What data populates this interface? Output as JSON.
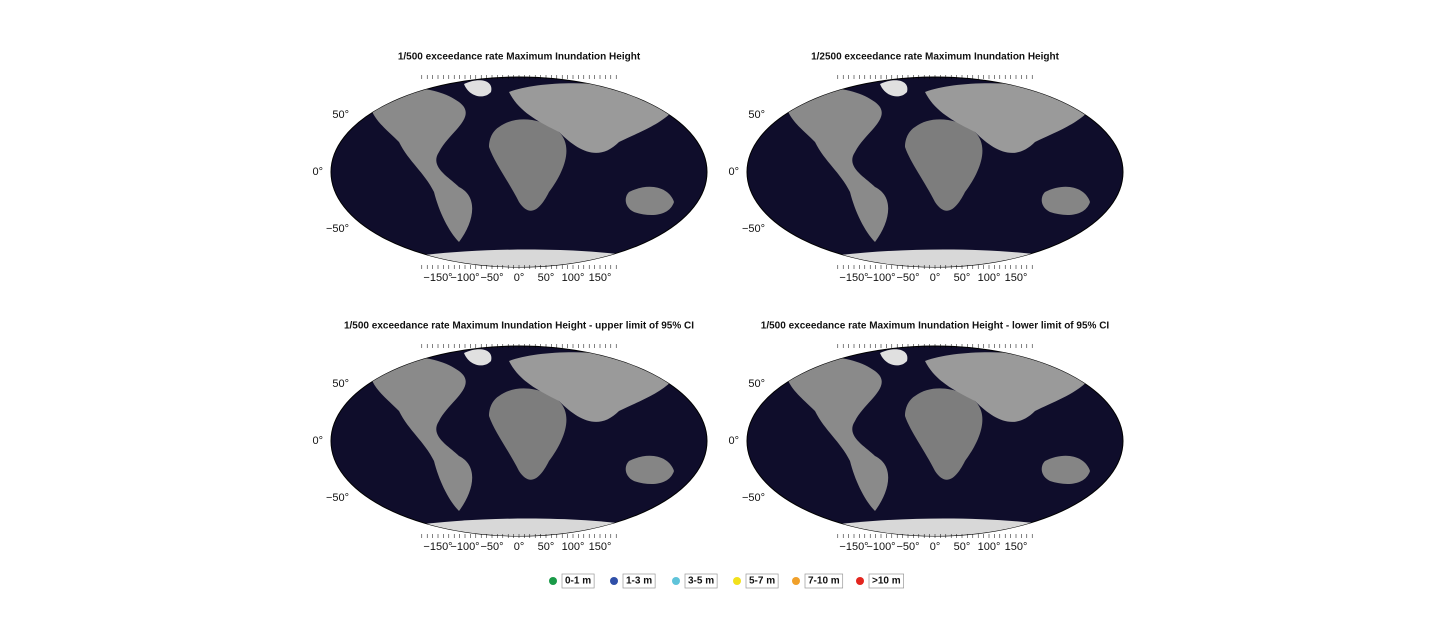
{
  "panels": [
    {
      "title": "1/500 exceedance rate Maximum Inundation Height",
      "y_ticks": [
        "50°",
        "0°",
        "−50°"
      ],
      "x_ticks": [
        "−150°",
        "−100°",
        "−50°",
        "0°",
        "50°",
        "100°",
        "150°"
      ]
    },
    {
      "title": "1/2500 exceedance rate Maximum Inundation Height",
      "y_ticks": [
        "50°",
        "0°",
        "−50°"
      ],
      "x_ticks": [
        "−150°",
        "−100°",
        "−50°",
        "0°",
        "50°",
        "100°",
        "150°"
      ]
    },
    {
      "title": "1/500 exceedance rate Maximum Inundation Height - upper limit of 95% CI",
      "y_ticks": [
        "50°",
        "0°",
        "−50°"
      ],
      "x_ticks": [
        "−150°",
        "−100°",
        "−50°",
        "0°",
        "50°",
        "100°",
        "150°"
      ]
    },
    {
      "title": "1/500 exceedance rate Maximum Inundation Height - lower limit of 95% CI",
      "y_ticks": [
        "50°",
        "0°",
        "−50°"
      ],
      "x_ticks": [
        "−150°",
        "−100°",
        "−50°",
        "0°",
        "50°",
        "100°",
        "150°"
      ]
    }
  ],
  "legend": [
    {
      "label": "0-1 m",
      "color": "#1a9a48"
    },
    {
      "label": "1-3 m",
      "color": "#2f4fa8"
    },
    {
      "label": "3-5 m",
      "color": "#5fc3d9"
    },
    {
      "label": "5-7 m",
      "color": "#f2e11c"
    },
    {
      "label": "7-10 m",
      "color": "#f0a02a"
    },
    {
      "label": ">10 m",
      "color": "#e3261f"
    }
  ]
}
